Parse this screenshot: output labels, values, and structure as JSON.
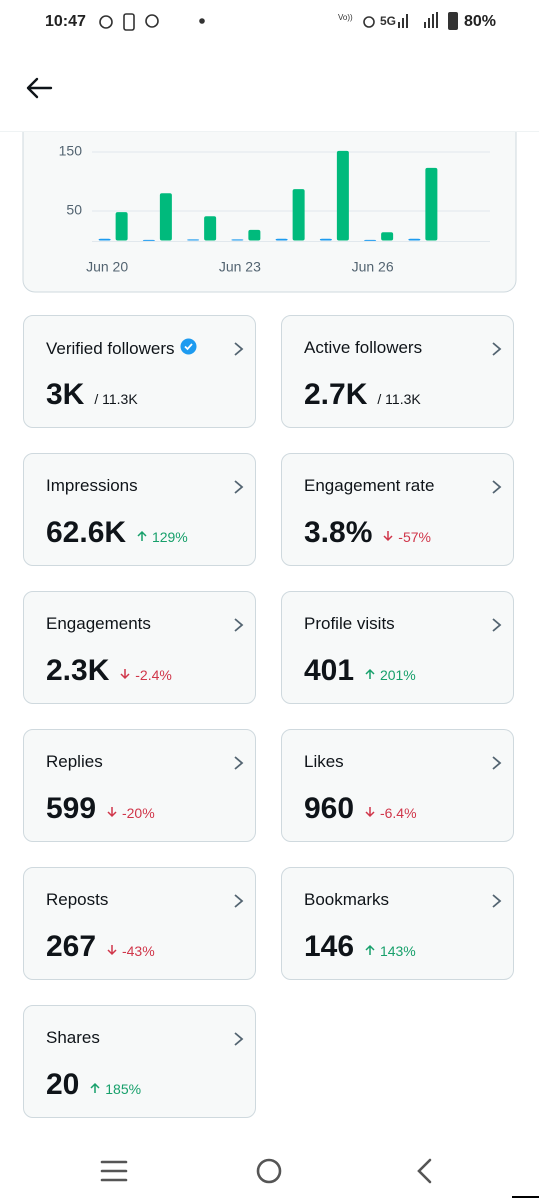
{
  "status_bar": {
    "time": "10:47",
    "network": "5G",
    "battery": "80%"
  },
  "chart_data": {
    "type": "bar",
    "categories": [
      "Jun 20",
      null,
      null,
      "Jun 23",
      null,
      null,
      "Jun 26",
      null
    ],
    "series": [
      {
        "color": "#1d9bf0",
        "values": [
          3,
          1,
          2,
          2,
          3,
          3,
          1,
          3
        ]
      },
      {
        "color": "#00ba7c",
        "values": [
          48,
          80,
          41,
          18,
          87,
          152,
          14,
          123
        ]
      }
    ],
    "ylim": [
      0,
      150
    ],
    "yticks": [
      50,
      150
    ],
    "grid": true
  },
  "cards": [
    {
      "title": "Verified followers",
      "value": "3K",
      "total": "/ 11.3K",
      "verified": true
    },
    {
      "title": "Active followers",
      "value": "2.7K",
      "total": "/ 11.3K"
    },
    {
      "title": "Impressions",
      "value": "62.6K",
      "change": "129%",
      "trend": "up"
    },
    {
      "title": "Engagement rate",
      "value": "3.8%",
      "change": "-57%",
      "trend": "down"
    },
    {
      "title": "Engagements",
      "value": "2.3K",
      "change": "-2.4%",
      "trend": "down"
    },
    {
      "title": "Profile visits",
      "value": "401",
      "change": "201%",
      "trend": "up"
    },
    {
      "title": "Replies",
      "value": "599",
      "change": "-20%",
      "trend": "down"
    },
    {
      "title": "Likes",
      "value": "960",
      "change": "-6.4%",
      "trend": "down"
    },
    {
      "title": "Reposts",
      "value": "267",
      "change": "-43%",
      "trend": "down"
    },
    {
      "title": "Bookmarks",
      "value": "146",
      "change": "143%",
      "trend": "up"
    },
    {
      "title": "Shares",
      "value": "20",
      "change": "185%",
      "trend": "up"
    }
  ]
}
